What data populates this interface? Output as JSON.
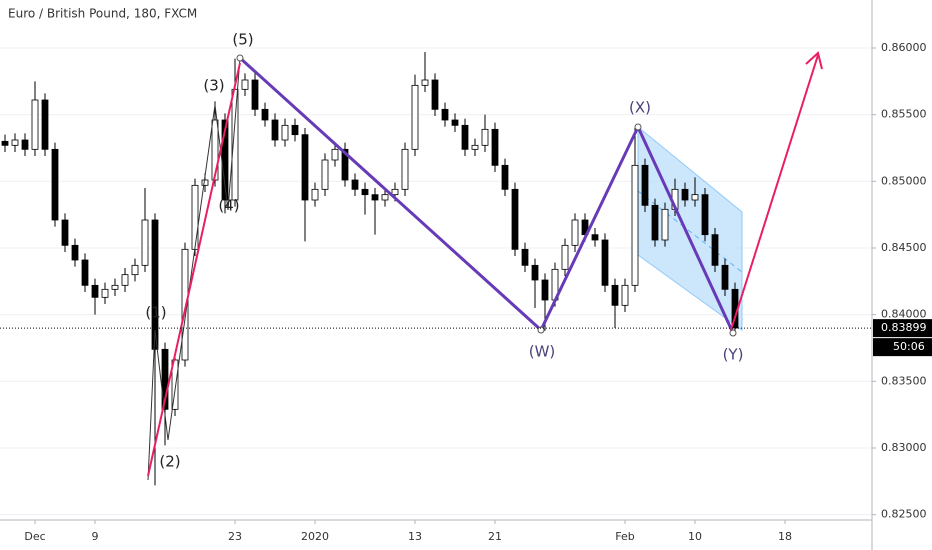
{
  "chart_data": {
    "type": "candlestick",
    "title": "Euro / British Pound, 180, FXCM",
    "up_color": "#ffffff",
    "down_color": "#000000",
    "categories": [
      null,
      null,
      null,
      "Dec",
      null,
      null,
      null,
      null,
      null,
      "9",
      null,
      null,
      null,
      null,
      null,
      null,
      null,
      null,
      null,
      null,
      null,
      null,
      null,
      "23",
      null,
      null,
      null,
      null,
      null,
      null,
      null,
      "2020",
      null,
      null,
      null,
      null,
      null,
      null,
      null,
      null,
      null,
      "13",
      null,
      null,
      null,
      null,
      null,
      null,
      null,
      "21",
      null,
      null,
      null,
      null,
      null,
      null,
      null,
      null,
      null,
      null,
      null,
      null,
      "Feb",
      null,
      null,
      null,
      null,
      null,
      null,
      "10",
      null,
      null,
      null,
      null,
      null,
      null,
      null,
      null,
      "18",
      null,
      null,
      null,
      null,
      null,
      null,
      null,
      null
    ],
    "open": [
      0.853,
      0.8527,
      0.8531,
      0.8524,
      0.8561,
      0.8524,
      0.8471,
      0.8452,
      0.8441,
      0.8422,
      0.8413,
      0.8419,
      0.8422,
      0.843,
      0.8437,
      0.8471,
      0.8374,
      0.8329,
      0.8366,
      0.8449,
      0.8497,
      0.8501,
      0.8546,
      0.8486,
      0.8569,
      0.8576,
      0.8554,
      0.8546,
      0.8531,
      0.8542,
      0.8535,
      0.8486,
      0.8494,
      0.8516,
      0.8524,
      0.8501,
      0.8494,
      0.849,
      0.8486,
      0.849,
      0.8494,
      0.8524,
      0.8572,
      0.8576,
      0.8554,
      0.8546,
      0.8542,
      0.8524,
      0.8527,
      0.8539,
      0.8512,
      0.8494,
      0.8449,
      0.8437,
      0.8426,
      0.8411,
      0.8434,
      0.8452,
      0.8471,
      0.846,
      0.8456,
      0.8422,
      0.8407,
      0.8422,
      0.8512,
      0.8482,
      0.8456,
      0.8479,
      0.8494,
      0.8486,
      0.849,
      0.846,
      0.8437,
      0.8419,
      null,
      null,
      null,
      null,
      null,
      null,
      null,
      null,
      null,
      null,
      null,
      null,
      null
    ],
    "high": [
      0.8535,
      0.8536,
      0.8536,
      0.8575,
      0.8566,
      0.8529,
      0.8476,
      0.8457,
      0.8446,
      0.8427,
      0.8424,
      0.8427,
      0.8435,
      0.8442,
      0.8495,
      0.8476,
      0.8379,
      0.8371,
      0.8454,
      0.8502,
      0.8506,
      0.856,
      0.8551,
      0.8592,
      0.8581,
      0.8581,
      0.8559,
      0.8551,
      0.8547,
      0.8547,
      0.854,
      0.8499,
      0.8521,
      0.8529,
      0.8529,
      0.8506,
      0.8499,
      0.8495,
      0.8495,
      0.8499,
      0.8529,
      0.858,
      0.8597,
      0.8581,
      0.8559,
      0.8551,
      0.8547,
      0.8532,
      0.855,
      0.8544,
      0.8517,
      0.8499,
      0.8454,
      0.8442,
      0.8431,
      0.8439,
      0.8457,
      0.8476,
      0.8476,
      0.8465,
      0.8461,
      0.8427,
      0.8427,
      0.854,
      0.8517,
      0.8487,
      0.8484,
      0.8502,
      0.8499,
      0.8503,
      0.8495,
      0.8465,
      0.8442,
      0.8424,
      null,
      null,
      null,
      null,
      null,
      null,
      null,
      null,
      null,
      null,
      null,
      null,
      null
    ],
    "low": [
      0.8522,
      0.8522,
      0.8519,
      0.8519,
      0.8519,
      0.8466,
      0.8447,
      0.8436,
      0.8417,
      0.84,
      0.8408,
      0.8414,
      0.8417,
      0.8425,
      0.8432,
      0.8272,
      0.8302,
      0.8324,
      0.8361,
      0.8444,
      0.8492,
      0.8496,
      0.8476,
      0.8481,
      0.8564,
      0.8549,
      0.8541,
      0.8526,
      0.8526,
      0.853,
      0.8455,
      0.8481,
      0.8489,
      0.8511,
      0.8496,
      0.8489,
      0.8475,
      0.846,
      0.8481,
      0.8485,
      0.8489,
      0.8519,
      0.8567,
      0.8549,
      0.8541,
      0.8537,
      0.8519,
      0.8519,
      0.8522,
      0.8507,
      0.8489,
      0.8444,
      0.8432,
      0.8405,
      0.8388,
      0.8406,
      0.8429,
      0.8447,
      0.8455,
      0.8451,
      0.8417,
      0.839,
      0.8402,
      0.8417,
      0.8477,
      0.8451,
      0.8451,
      0.8474,
      0.8481,
      0.8481,
      0.8455,
      0.8432,
      0.8414,
      0.8386,
      null,
      null,
      null,
      null,
      null,
      null,
      null,
      null,
      null,
      null,
      null,
      null,
      null
    ],
    "close": [
      0.8527,
      0.8531,
      0.8524,
      0.8561,
      0.8524,
      0.8471,
      0.8452,
      0.8441,
      0.8422,
      0.8413,
      0.8419,
      0.8422,
      0.843,
      0.8437,
      0.8471,
      0.8374,
      0.8329,
      0.8366,
      0.8449,
      0.8497,
      0.8501,
      0.8546,
      0.8486,
      0.8569,
      0.8576,
      0.8554,
      0.8546,
      0.8531,
      0.8542,
      0.8535,
      0.8486,
      0.8494,
      0.8516,
      0.8524,
      0.8501,
      0.8494,
      0.849,
      0.8486,
      0.849,
      0.8494,
      0.8524,
      0.8572,
      0.8576,
      0.8554,
      0.8546,
      0.8542,
      0.8524,
      0.8527,
      0.8539,
      0.8512,
      0.8494,
      0.8449,
      0.8437,
      0.8426,
      0.8411,
      0.8434,
      0.8452,
      0.8471,
      0.846,
      0.8456,
      0.8422,
      0.8407,
      0.8422,
      0.8512,
      0.8482,
      0.8456,
      0.8479,
      0.8494,
      0.8486,
      0.849,
      0.846,
      0.8437,
      0.8419,
      0.839,
      null,
      null,
      null,
      null,
      null,
      null,
      null,
      null,
      null,
      null,
      null,
      null,
      null
    ],
    "ylim": [
      0.8246,
      0.8636
    ],
    "yticks": [
      {
        "value": 0.825,
        "label": "0.82500"
      },
      {
        "value": 0.83,
        "label": "0.83000"
      },
      {
        "value": 0.835,
        "label": "0.83500"
      },
      {
        "value": 0.84,
        "label": "0.84000"
      },
      {
        "value": 0.845,
        "label": "0.84500"
      },
      {
        "value": 0.85,
        "label": "0.85000"
      },
      {
        "value": 0.855,
        "label": "0.85500"
      },
      {
        "value": 0.86,
        "label": "0.86000"
      }
    ],
    "grid": true,
    "last_price": {
      "value": 0.83899,
      "label": "0.83899"
    },
    "countdown": "50:06",
    "wave_labels": [
      "(1)",
      "(2)",
      "(3)",
      "(4)",
      "(5)",
      "(W)",
      "(X)",
      "(Y)"
    ]
  }
}
